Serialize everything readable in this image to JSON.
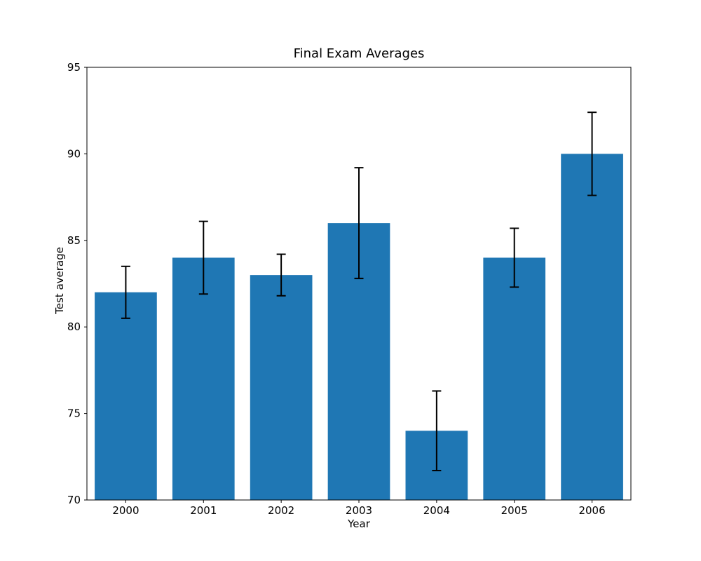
{
  "chart_data": {
    "type": "bar",
    "title": "Final Exam Averages",
    "xlabel": "Year",
    "ylabel": "Test average",
    "categories": [
      "2000",
      "2001",
      "2002",
      "2003",
      "2004",
      "2005",
      "2006"
    ],
    "series": [
      {
        "name": "Test average",
        "values": [
          82,
          84,
          83,
          86,
          74,
          84,
          90
        ],
        "error_bars": [
          1.5,
          2.1,
          1.2,
          3.2,
          2.3,
          1.7,
          2.4
        ]
      }
    ],
    "ylim": [
      70,
      95
    ],
    "y_ticks": [
      70,
      75,
      80,
      85,
      90,
      95
    ],
    "bar_color": "#1f77b4",
    "error_bar_color": "#000000",
    "axis_color": "#000000",
    "background_color": "#ffffff",
    "grid": false,
    "legend": null
  }
}
